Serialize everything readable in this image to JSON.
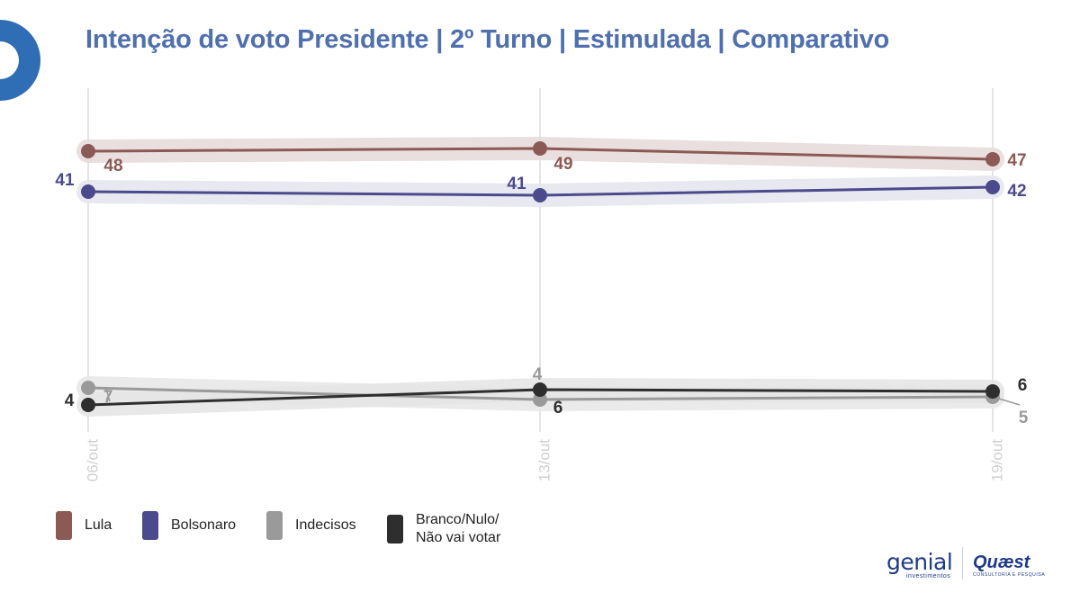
{
  "title": "Intenção de voto Presidente | 2º Turno | Estimulada | Comparativo",
  "colors": {
    "title": "#4f6fae",
    "lula": "#8b5a55",
    "bolsonaro": "#4b4a8c",
    "indecisos": "#9a9a9a",
    "branco": "#2e2e2e",
    "corner": "#2f6db5"
  },
  "chart_data": {
    "type": "line",
    "x": [
      "06/out",
      "13/out",
      "19/out"
    ],
    "grid_vertical": true,
    "legend_position": "bottom-left",
    "series": [
      {
        "name": "Lula",
        "key": "lula",
        "values": [
          48,
          49,
          47
        ]
      },
      {
        "name": "Bolsonaro",
        "key": "bolsonaro",
        "values": [
          41,
          41,
          42
        ]
      },
      {
        "name": "Indecisos",
        "key": "indecisos",
        "values": [
          7,
          4,
          5
        ]
      },
      {
        "name": "Branco/Nulo/ Não vai votar",
        "key": "branco",
        "values": [
          4,
          6,
          6
        ]
      }
    ]
  },
  "legend": [
    {
      "key": "lula",
      "line1": "Lula",
      "line2": ""
    },
    {
      "key": "bolsonaro",
      "line1": "Bolsonaro",
      "line2": ""
    },
    {
      "key": "indecisos",
      "line1": "Indecisos",
      "line2": ""
    },
    {
      "key": "branco",
      "line1": "Branco/Nulo/",
      "line2": "Não vai votar"
    }
  ],
  "logos": {
    "genial": "genial",
    "genial_sub": "investimentos",
    "quaest": "Quæst",
    "quaest_sub": "CONSULTORIA E PESQUISA"
  }
}
